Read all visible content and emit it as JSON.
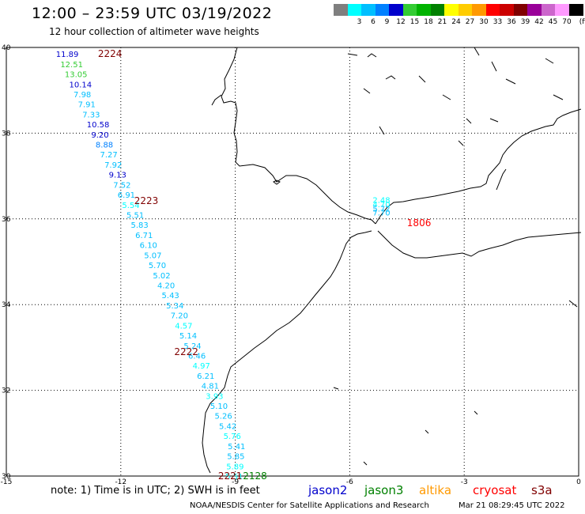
{
  "header": {
    "title": "12:00 – 23:59 UTC 03/19/2022",
    "subtitle": "12 hour collection of altimeter wave heights"
  },
  "scale": {
    "unit": "(ft)",
    "entries": [
      {
        "label": "",
        "color": "#7f7f7f"
      },
      {
        "label": "3",
        "color": "#00ffff"
      },
      {
        "label": "6",
        "color": "#00bfff"
      },
      {
        "label": "9",
        "color": "#0080ff"
      },
      {
        "label": "12",
        "color": "#0000cc"
      },
      {
        "label": "15",
        "color": "#33cc33"
      },
      {
        "label": "18",
        "color": "#00b300"
      },
      {
        "label": "21",
        "color": "#008000"
      },
      {
        "label": "24",
        "color": "#ffff00"
      },
      {
        "label": "27",
        "color": "#ffcc00"
      },
      {
        "label": "30",
        "color": "#ff9900"
      },
      {
        "label": "33",
        "color": "#ff0000"
      },
      {
        "label": "36",
        "color": "#cc0000"
      },
      {
        "label": "39",
        "color": "#800000"
      },
      {
        "label": "42",
        "color": "#990099"
      },
      {
        "label": "45",
        "color": "#cc66cc"
      },
      {
        "label": "70",
        "color": "#ff99ff"
      },
      {
        "label": "",
        "color": "#000000"
      }
    ]
  },
  "map": {
    "lon_range": [
      -15,
      0
    ],
    "lat_range": [
      30,
      40
    ],
    "lon_ticks": [
      "-15",
      "-12",
      "-9",
      "-6",
      "-3",
      "0"
    ],
    "lat_ticks": [
      "40",
      "38",
      "36",
      "34",
      "32",
      "30"
    ]
  },
  "track_west": {
    "values": [
      "11.89",
      "12.51",
      "13.05",
      "10.14",
      "7.98",
      "7.91",
      "7.33",
      "10.58",
      "9.20",
      "8.88",
      "7.27",
      "7.92",
      "9.13",
      "7.52",
      "6.91",
      "5.54",
      "5.51",
      "5.83",
      "6.71",
      "6.10",
      "5.07",
      "5.70",
      "5.02",
      "4.20",
      "5.43",
      "5.34",
      "7.20",
      "4.57",
      "5.14",
      "5.24",
      "6.46",
      "4.97",
      "6.21",
      "4.81",
      "3.93",
      "5.10",
      "5.26",
      "5.42",
      "5.76",
      "5.41",
      "5.85",
      "5.89",
      "5.51"
    ],
    "colors": [
      "#0000cc",
      "#33cc33",
      "#33cc33",
      "#0000cc",
      "#00bfff",
      "#00bfff",
      "#00bfff",
      "#0000cc",
      "#0000cc",
      "#0080ff",
      "#00bfff",
      "#00bfff",
      "#0000cc",
      "#00bfff",
      "#00bfff",
      "#00ffff",
      "#00bfff",
      "#00bfff",
      "#00bfff",
      "#00bfff",
      "#00bfff",
      "#00bfff",
      "#00bfff",
      "#00bfff",
      "#00bfff",
      "#00bfff",
      "#00bfff",
      "#00ffff",
      "#00bfff",
      "#00bfff",
      "#00bfff",
      "#00ffff",
      "#00bfff",
      "#00bfff",
      "#00ffff",
      "#00bfff",
      "#00bfff",
      "#00bfff",
      "#00ffff",
      "#00bfff",
      "#00bfff",
      "#00ffff",
      "#00ffff"
    ],
    "lat_first": 39.85,
    "lat_last": 30.0,
    "lon_first": -13.7,
    "lon_last": -12.5,
    "lon_step": 0.055
  },
  "track_east": {
    "values": [
      "2.48",
      "4.70",
      "5.72",
      "7.70"
    ],
    "colors": [
      "#00ffff",
      "#00ffff",
      "#00bfff",
      "#00bfff"
    ],
    "lon": -5.4,
    "lat_first": 36.45,
    "lat_step": -0.1
  },
  "time_labels": [
    {
      "text": "2224",
      "lon": -12.6,
      "lat": 39.85,
      "color": "#800000"
    },
    {
      "text": "2223",
      "lon": -11.65,
      "lat": 36.42,
      "color": "#800000"
    },
    {
      "text": "2222",
      "lon": -10.6,
      "lat": 32.9,
      "color": "#800000"
    },
    {
      "text": "2221",
      "lon": -9.45,
      "lat": 30.0,
      "color": "#800000"
    },
    {
      "text": "2128",
      "lon": -8.8,
      "lat": 30.0,
      "color": "#008000"
    },
    {
      "text": "1806",
      "lon": -4.5,
      "lat": 35.9,
      "color": "#ff0000"
    }
  ],
  "footer": {
    "note": "note:  1) Time is in UTC;  2) SWH is in feet",
    "satellites": [
      {
        "name": "jason2",
        "color": "#0000cc",
        "left": 390
      },
      {
        "name": "jason3",
        "color": "#008000",
        "left": 461
      },
      {
        "name": "altika",
        "color": "#ff9900",
        "left": 530
      },
      {
        "name": "cryosat",
        "color": "#ff0000",
        "left": 598
      },
      {
        "name": "s3a",
        "color": "#800000",
        "left": 672
      }
    ],
    "credit": "NOAA/NESDIS Center for Satellite Applications and Research",
    "timestamp": "Mar 21 08:29:45 UTC 2022"
  }
}
